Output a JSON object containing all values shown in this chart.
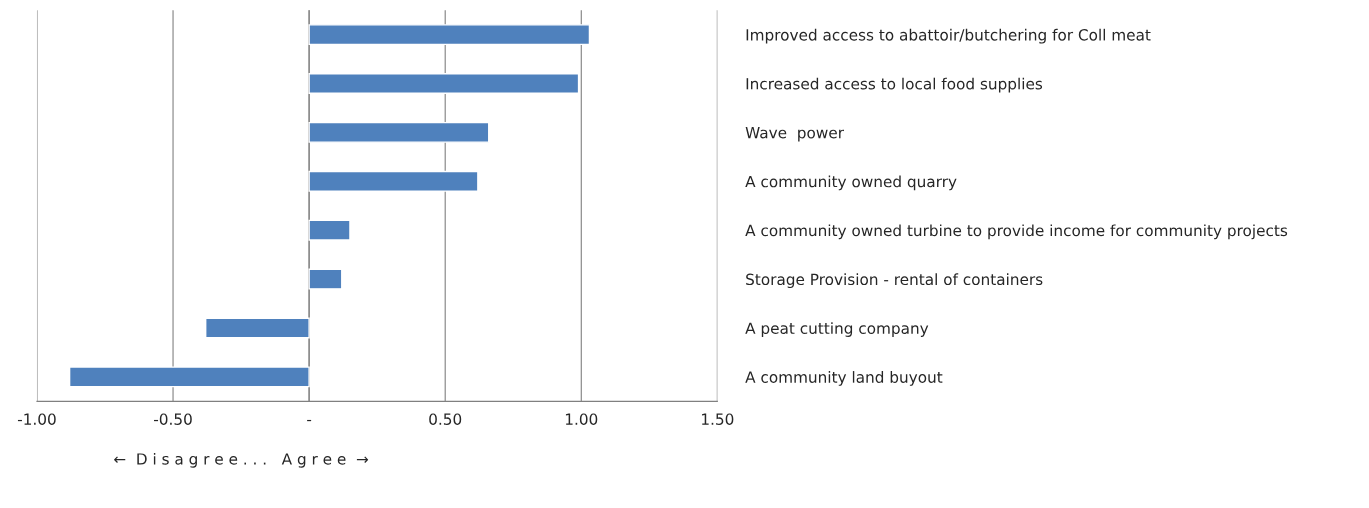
{
  "chart_data": {
    "type": "bar",
    "orientation": "horizontal",
    "categories": [
      "Improved access to abattoir/butchering for Coll meat",
      "Increased access to local food supplies",
      "Wave  power",
      "A community owned quarry",
      "A community owned turbine to provide income for community projects",
      "Storage Provision - rental of containers",
      "A peat cutting company",
      "A community land buyout"
    ],
    "values": [
      1.03,
      0.99,
      0.66,
      0.62,
      0.15,
      0.12,
      -0.38,
      -0.88
    ],
    "color": "#4f81bd",
    "xlim": [
      -1.0,
      1.5
    ],
    "xticks": [
      {
        "value": -1.0,
        "label": "-1.00"
      },
      {
        "value": -0.5,
        "label": "-0.50"
      },
      {
        "value": 0,
        "label": "-"
      },
      {
        "value": 0.5,
        "label": "0.50"
      },
      {
        "value": 1.0,
        "label": "1.00"
      },
      {
        "value": 1.5,
        "label": "1.50"
      }
    ],
    "xlabel": "←  D i s a g r e e . . .   A g r e e  →",
    "grid": "x"
  }
}
